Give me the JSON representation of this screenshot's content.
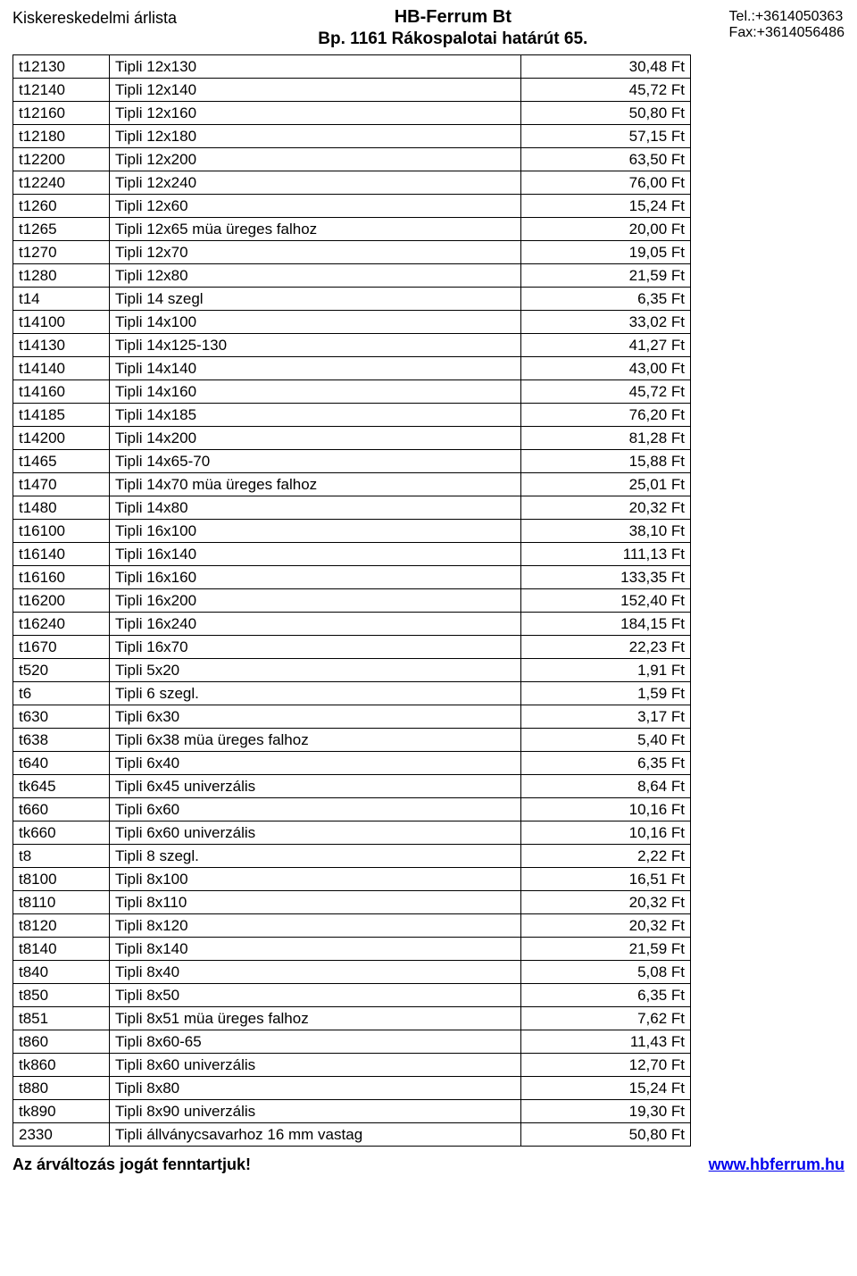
{
  "header": {
    "left": "Kiskereskedelmi árlista",
    "company": "HB-Ferrum Bt",
    "addr": "Bp. 1161 Rákospalotai határút 65.",
    "tel": "Tel.:+3614050363",
    "fax": "Fax:+3614056486"
  },
  "table": {
    "col_widths": {
      "code": 108,
      "price": 190
    },
    "font_size": 17,
    "border_color": "#000000",
    "rows": [
      {
        "code": "t12130",
        "desc": "Tipli 12x130",
        "price": "30,48 Ft"
      },
      {
        "code": "t12140",
        "desc": "Tipli 12x140",
        "price": "45,72 Ft"
      },
      {
        "code": "t12160",
        "desc": "Tipli 12x160",
        "price": "50,80 Ft"
      },
      {
        "code": "t12180",
        "desc": "Tipli 12x180",
        "price": "57,15 Ft"
      },
      {
        "code": "t12200",
        "desc": "Tipli 12x200",
        "price": "63,50 Ft"
      },
      {
        "code": "t12240",
        "desc": "Tipli 12x240",
        "price": "76,00 Ft"
      },
      {
        "code": "t1260",
        "desc": "Tipli 12x60",
        "price": "15,24 Ft"
      },
      {
        "code": "t1265",
        "desc": "Tipli 12x65 müa üreges falhoz",
        "price": "20,00 Ft"
      },
      {
        "code": "t1270",
        "desc": "Tipli 12x70",
        "price": "19,05 Ft"
      },
      {
        "code": "t1280",
        "desc": "Tipli 12x80",
        "price": "21,59 Ft"
      },
      {
        "code": "t14",
        "desc": "Tipli 14 szegl",
        "price": "6,35 Ft"
      },
      {
        "code": "t14100",
        "desc": "Tipli 14x100",
        "price": "33,02 Ft"
      },
      {
        "code": "t14130",
        "desc": "Tipli 14x125-130",
        "price": "41,27 Ft"
      },
      {
        "code": "t14140",
        "desc": "Tipli 14x140",
        "price": "43,00 Ft"
      },
      {
        "code": "t14160",
        "desc": "Tipli 14x160",
        "price": "45,72 Ft"
      },
      {
        "code": "t14185",
        "desc": "Tipli 14x185",
        "price": "76,20 Ft"
      },
      {
        "code": "t14200",
        "desc": "Tipli 14x200",
        "price": "81,28 Ft"
      },
      {
        "code": "t1465",
        "desc": "Tipli 14x65-70",
        "price": "15,88 Ft"
      },
      {
        "code": "t1470",
        "desc": "Tipli 14x70 müa üreges falhoz",
        "price": "25,01 Ft"
      },
      {
        "code": "t1480",
        "desc": "Tipli 14x80",
        "price": "20,32 Ft"
      },
      {
        "code": "t16100",
        "desc": "Tipli 16x100",
        "price": "38,10 Ft"
      },
      {
        "code": "t16140",
        "desc": "Tipli 16x140",
        "price": "111,13 Ft"
      },
      {
        "code": "t16160",
        "desc": "Tipli 16x160",
        "price": "133,35 Ft"
      },
      {
        "code": "t16200",
        "desc": "Tipli 16x200",
        "price": "152,40 Ft"
      },
      {
        "code": "t16240",
        "desc": "Tipli 16x240",
        "price": "184,15 Ft"
      },
      {
        "code": "t1670",
        "desc": "Tipli 16x70",
        "price": "22,23 Ft"
      },
      {
        "code": "t520",
        "desc": "Tipli 5x20",
        "price": "1,91 Ft"
      },
      {
        "code": "t6",
        "desc": "Tipli 6 szegl.",
        "price": "1,59 Ft"
      },
      {
        "code": "t630",
        "desc": "Tipli 6x30",
        "price": "3,17 Ft"
      },
      {
        "code": "t638",
        "desc": "Tipli 6x38 müa üreges falhoz",
        "price": "5,40 Ft"
      },
      {
        "code": "t640",
        "desc": "Tipli 6x40",
        "price": "6,35 Ft"
      },
      {
        "code": "tk645",
        "desc": "Tipli 6x45 univerzális",
        "price": "8,64 Ft"
      },
      {
        "code": "t660",
        "desc": "Tipli 6x60",
        "price": "10,16 Ft"
      },
      {
        "code": "tk660",
        "desc": "Tipli 6x60 univerzális",
        "price": "10,16 Ft"
      },
      {
        "code": "t8",
        "desc": "Tipli 8 szegl.",
        "price": "2,22 Ft"
      },
      {
        "code": "t8100",
        "desc": "Tipli 8x100",
        "price": "16,51 Ft"
      },
      {
        "code": "t8110",
        "desc": "Tipli 8x110",
        "price": "20,32 Ft"
      },
      {
        "code": "t8120",
        "desc": "Tipli 8x120",
        "price": "20,32 Ft"
      },
      {
        "code": "t8140",
        "desc": "Tipli 8x140",
        "price": "21,59 Ft"
      },
      {
        "code": "t840",
        "desc": "Tipli 8x40",
        "price": "5,08 Ft"
      },
      {
        "code": "t850",
        "desc": "Tipli 8x50",
        "price": "6,35 Ft"
      },
      {
        "code": "t851",
        "desc": "Tipli 8x51 müa üreges falhoz",
        "price": "7,62 Ft"
      },
      {
        "code": "t860",
        "desc": "Tipli 8x60-65",
        "price": "11,43 Ft"
      },
      {
        "code": "tk860",
        "desc": "Tipli 8x60 univerzális",
        "price": "12,70 Ft"
      },
      {
        "code": "t880",
        "desc": "Tipli 8x80",
        "price": "15,24 Ft"
      },
      {
        "code": "tk890",
        "desc": "Tipli 8x90 univerzális",
        "price": "19,30 Ft"
      },
      {
        "code": "2330",
        "desc": "Tipli állványcsavarhoz 16 mm vastag",
        "price": "50,80 Ft"
      }
    ]
  },
  "footer": {
    "left": "Az árváltozás jogát fenntartjuk!",
    "right": "www.hbferrum.hu"
  }
}
